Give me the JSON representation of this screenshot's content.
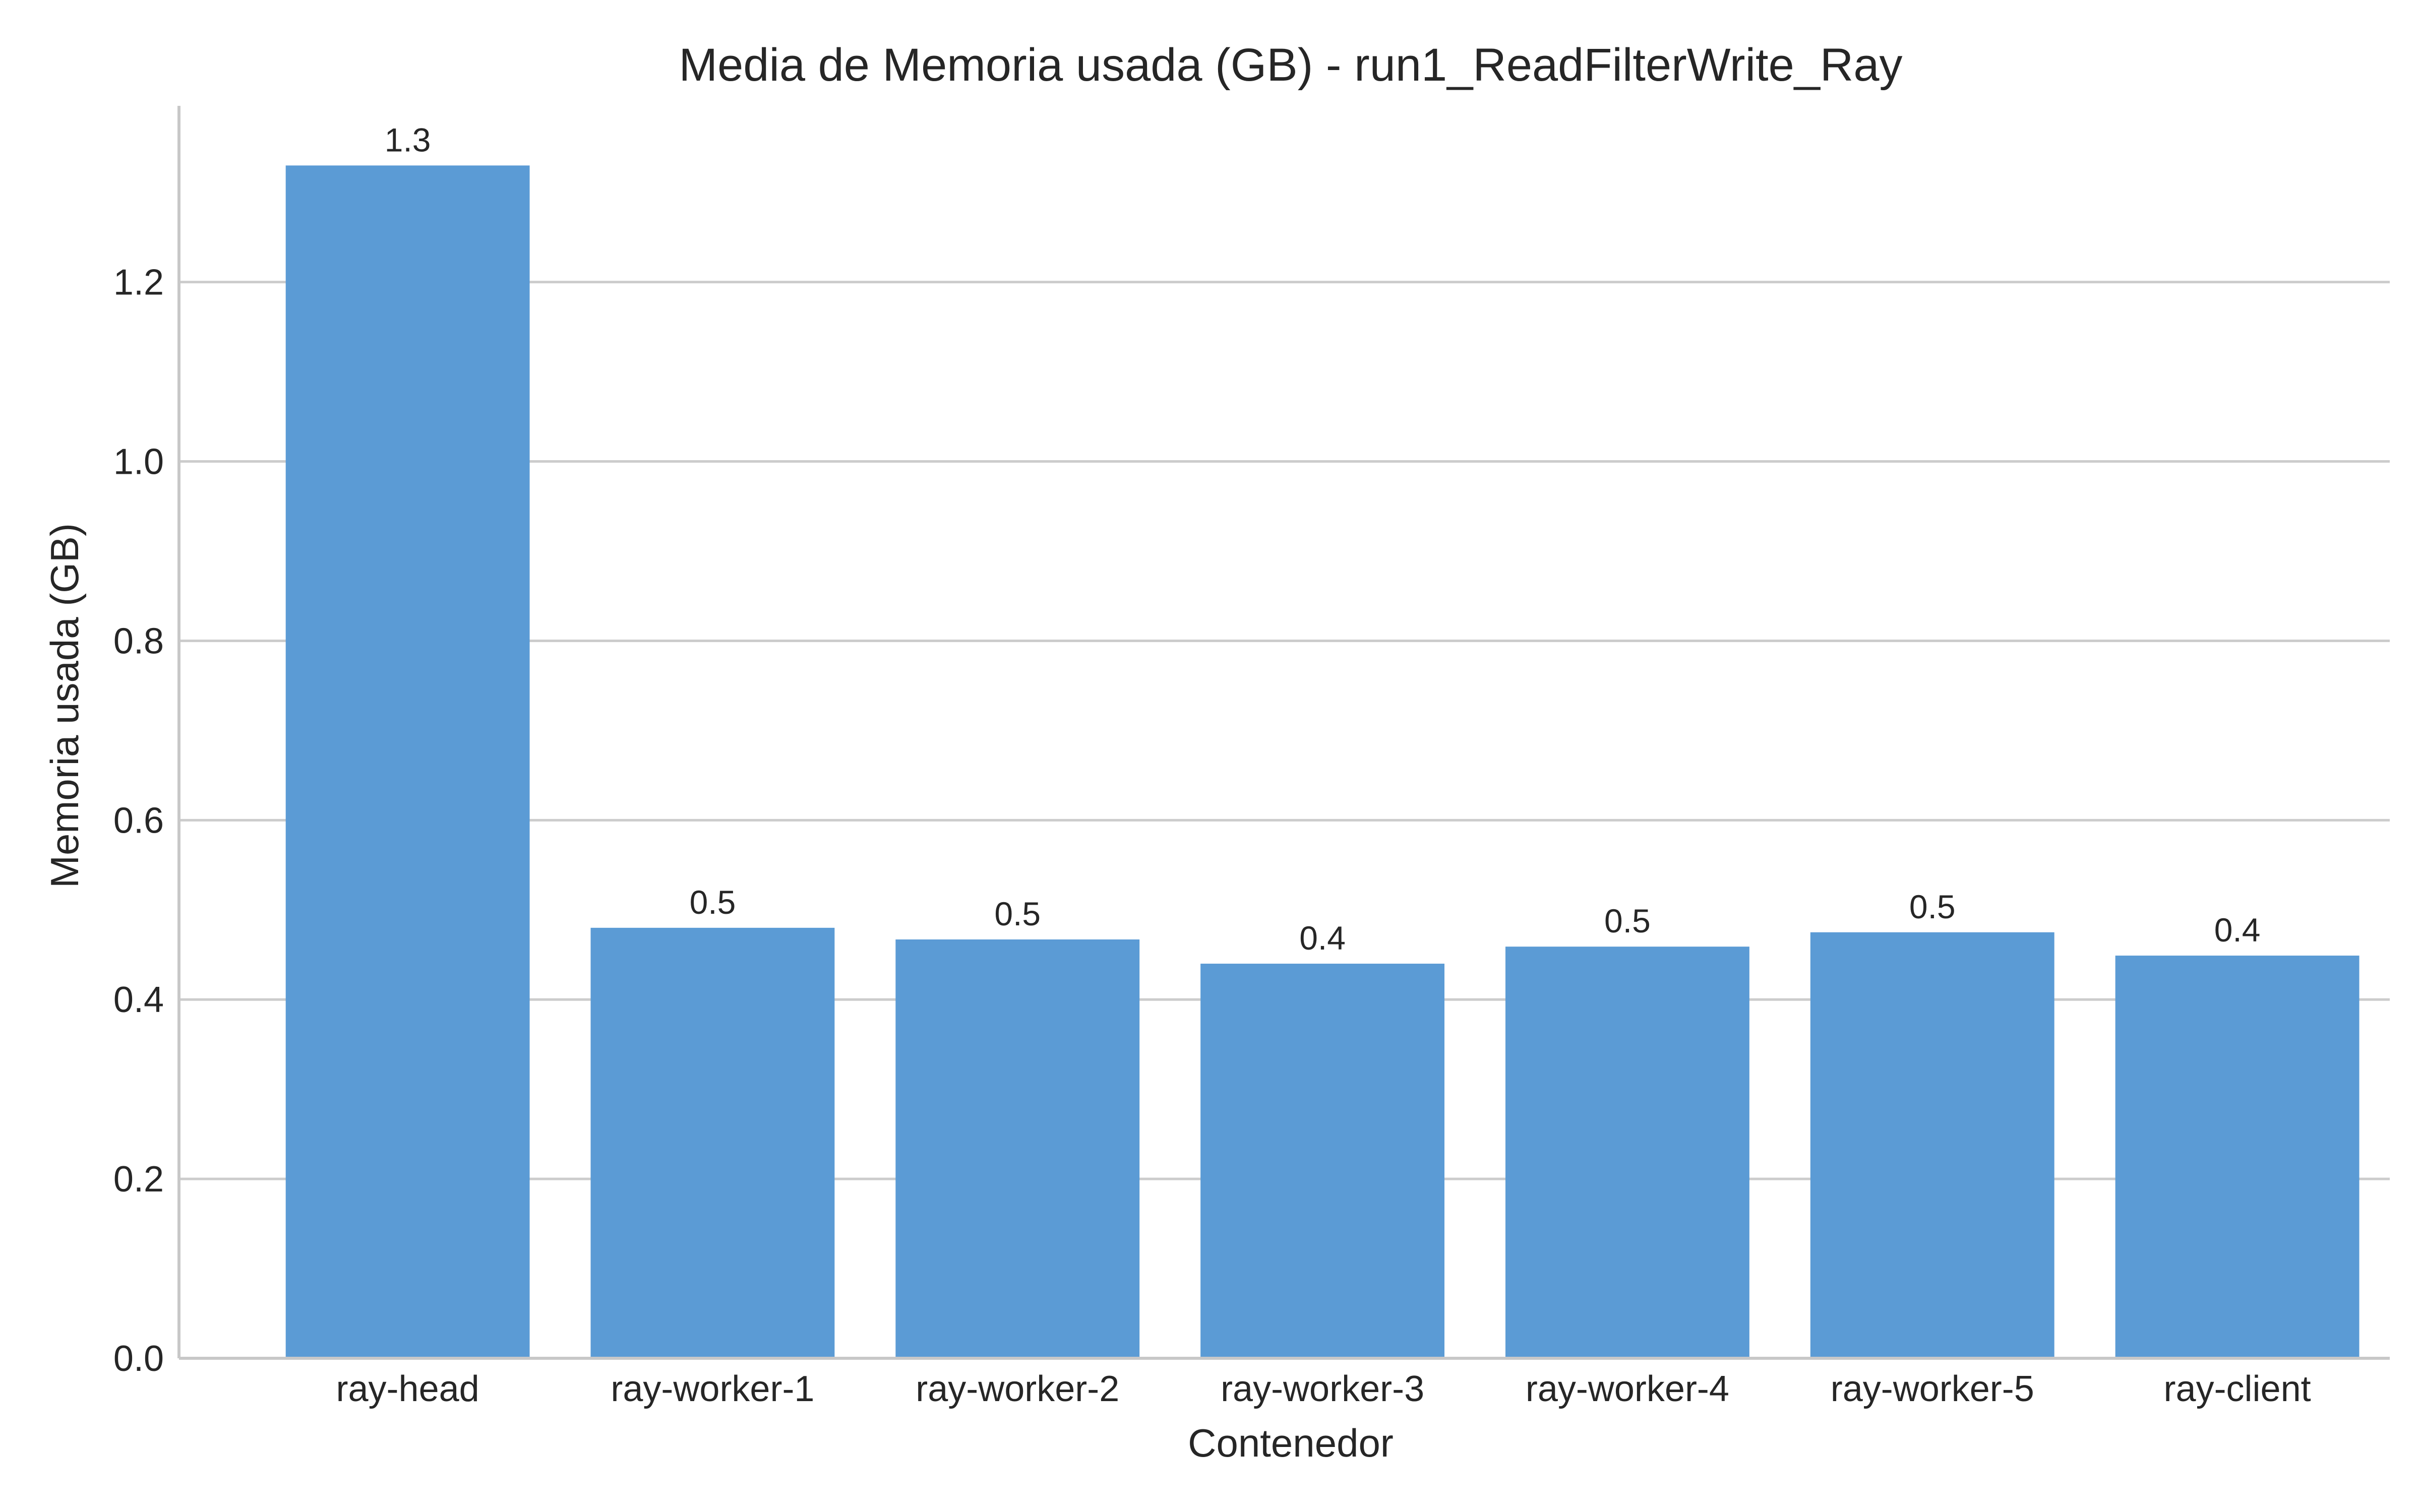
{
  "chart_data": {
    "type": "bar",
    "title": "Media de Memoria usada (GB) - run1_ReadFilterWrite_Ray",
    "xlabel": "Contenedor",
    "ylabel": "Memoria usada (GB)",
    "categories": [
      "ray-head",
      "ray-worker-1",
      "ray-worker-2",
      "ray-worker-3",
      "ray-worker-4",
      "ray-worker-5",
      "ray-client"
    ],
    "values": [
      1.33,
      0.48,
      0.467,
      0.44,
      0.459,
      0.475,
      0.449
    ],
    "data_labels": [
      "1.3",
      "0.5",
      "0.5",
      "0.4",
      "0.5",
      "0.5",
      "0.4"
    ],
    "ylim": [
      0,
      1.3965
    ],
    "yticks": [
      0.0,
      0.2,
      0.4,
      0.6,
      0.8,
      1.0,
      1.2
    ],
    "ytick_labels": [
      "0.0",
      "0.2",
      "0.4",
      "0.6",
      "0.8",
      "1.0",
      "1.2"
    ],
    "grid": "horizontal",
    "bar_color": "#5b9bd5",
    "grid_color": "#cccccc",
    "spine_color": "#c8c8c8"
  }
}
